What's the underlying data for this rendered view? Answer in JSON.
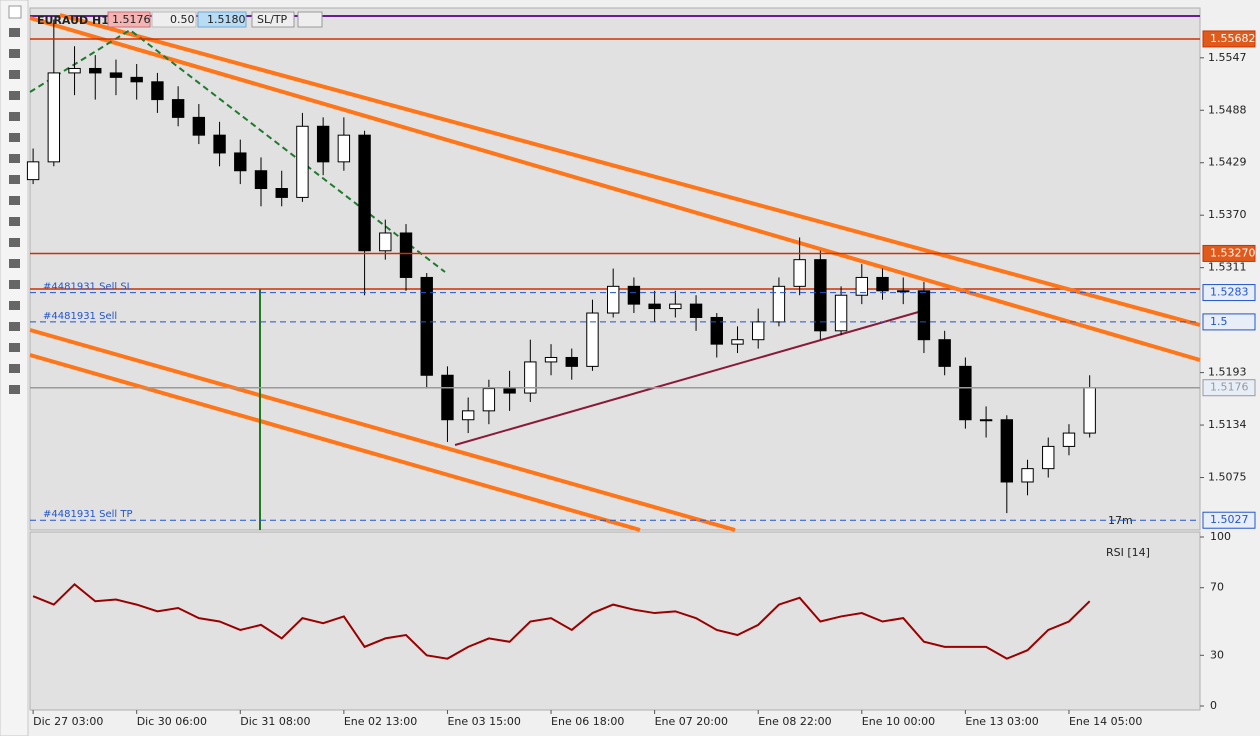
{
  "toolbar": {
    "symbol": "EURAUD H1",
    "sell": "1.5176",
    "volume": "0.50",
    "buy": "1.5180",
    "sltp": "SL/TP"
  },
  "chart_data": [
    {
      "type": "candlestick",
      "timer": "17m",
      "x": [
        0,
        4,
        8,
        12,
        16,
        20,
        24,
        28,
        32,
        36,
        40,
        44,
        48,
        52,
        56,
        60,
        64,
        68,
        72,
        76,
        80,
        84,
        88,
        92,
        96,
        100,
        104,
        108,
        112,
        116,
        120,
        124,
        128,
        132,
        136,
        140,
        144,
        148,
        152,
        156,
        160,
        164,
        168,
        172,
        176,
        180,
        184,
        188,
        192,
        196,
        200,
        204
      ],
      "ohlc": [
        [
          1.541,
          1.5445,
          1.5405,
          1.543
        ],
        [
          1.543,
          1.559,
          1.5425,
          1.553
        ],
        [
          1.553,
          1.556,
          1.5505,
          1.5535
        ],
        [
          1.5535,
          1.555,
          1.55,
          1.553
        ],
        [
          1.553,
          1.5545,
          1.5505,
          1.5525
        ],
        [
          1.5525,
          1.554,
          1.55,
          1.552
        ],
        [
          1.552,
          1.553,
          1.5485,
          1.55
        ],
        [
          1.55,
          1.5515,
          1.547,
          1.548
        ],
        [
          1.548,
          1.5495,
          1.545,
          1.546
        ],
        [
          1.546,
          1.5475,
          1.5425,
          1.544
        ],
        [
          1.544,
          1.5455,
          1.5405,
          1.542
        ],
        [
          1.542,
          1.5435,
          1.538,
          1.54
        ],
        [
          1.54,
          1.542,
          1.538,
          1.539
        ],
        [
          1.539,
          1.5485,
          1.5385,
          1.547
        ],
        [
          1.547,
          1.548,
          1.5415,
          1.543
        ],
        [
          1.543,
          1.548,
          1.542,
          1.546
        ],
        [
          1.546,
          1.5465,
          1.528,
          1.533
        ],
        [
          1.533,
          1.5365,
          1.532,
          1.535
        ],
        [
          1.535,
          1.536,
          1.5285,
          1.53
        ],
        [
          1.53,
          1.5305,
          1.5175,
          1.519
        ],
        [
          1.519,
          1.52,
          1.5115,
          1.514
        ],
        [
          1.514,
          1.5165,
          1.5125,
          1.515
        ],
        [
          1.515,
          1.5185,
          1.5135,
          1.5175
        ],
        [
          1.5175,
          1.5195,
          1.515,
          1.517
        ],
        [
          1.517,
          1.523,
          1.516,
          1.5205
        ],
        [
          1.5205,
          1.5225,
          1.519,
          1.521
        ],
        [
          1.521,
          1.522,
          1.5185,
          1.52
        ],
        [
          1.52,
          1.5275,
          1.5195,
          1.526
        ],
        [
          1.526,
          1.531,
          1.5255,
          1.529
        ],
        [
          1.529,
          1.53,
          1.526,
          1.527
        ],
        [
          1.527,
          1.5285,
          1.525,
          1.5265
        ],
        [
          1.5265,
          1.5285,
          1.5255,
          1.527
        ],
        [
          1.527,
          1.528,
          1.524,
          1.5255
        ],
        [
          1.5255,
          1.526,
          1.521,
          1.5225
        ],
        [
          1.5225,
          1.5245,
          1.5215,
          1.523
        ],
        [
          1.523,
          1.5265,
          1.522,
          1.525
        ],
        [
          1.525,
          1.53,
          1.5245,
          1.529
        ],
        [
          1.529,
          1.5345,
          1.528,
          1.532
        ],
        [
          1.532,
          1.533,
          1.523,
          1.524
        ],
        [
          1.524,
          1.529,
          1.5235,
          1.528
        ],
        [
          1.528,
          1.5315,
          1.527,
          1.53
        ],
        [
          1.53,
          1.531,
          1.5275,
          1.5285
        ],
        [
          1.5285,
          1.53,
          1.527,
          1.5285
        ],
        [
          1.5285,
          1.5295,
          1.5215,
          1.523
        ],
        [
          1.523,
          1.524,
          1.519,
          1.52
        ],
        [
          1.52,
          1.521,
          1.513,
          1.514
        ],
        [
          1.514,
          1.5155,
          1.512,
          1.514
        ],
        [
          1.514,
          1.5145,
          1.5035,
          1.507
        ],
        [
          1.507,
          1.5095,
          1.5055,
          1.5085
        ],
        [
          1.5085,
          1.512,
          1.5075,
          1.511
        ],
        [
          1.511,
          1.5135,
          1.51,
          1.5125
        ],
        [
          1.5125,
          1.519,
          1.512,
          1.5176
        ]
      ],
      "xlim": [
        -0.6,
        225.3
      ],
      "xticks": [
        {
          "value": 0,
          "label": "Dic 27 03:00"
        },
        {
          "value": 20,
          "label": "Dic 30 06:00"
        },
        {
          "value": 40,
          "label": "Dic 31 08:00"
        },
        {
          "value": 60,
          "label": "Ene 02 13:00"
        },
        {
          "value": 80,
          "label": "Ene 03 15:00"
        },
        {
          "value": 100,
          "label": "Ene 06 18:00"
        },
        {
          "value": 120,
          "label": "Ene 07 20:00"
        },
        {
          "value": 140,
          "label": "Ene 08 22:00"
        },
        {
          "value": 160,
          "label": "Ene 10 00:00"
        },
        {
          "value": 180,
          "label": "Ene 13 03:00"
        },
        {
          "value": 200,
          "label": "Ene 14 05:00"
        }
      ],
      "ylim": [
        1.5016,
        1.5603
      ],
      "yticks": [
        1.5547,
        1.5488,
        1.5429,
        {
          "value": 1.537,
          "label": "1.5370"
        },
        1.5311,
        1.5193,
        1.5134,
        1.5075
      ],
      "levels": [
        {
          "value": 1.55682,
          "label": "1.55682",
          "color": "#cc3300",
          "dashed": false
        },
        {
          "value": 1.5327,
          "label": "1.53270",
          "color": "#cc3300",
          "dashed": false
        },
        {
          "value": 1.5283,
          "label": "1.5283",
          "color": "#2255cc",
          "dashed": true,
          "name": "#4481931 Sell  SL"
        },
        {
          "value": 1.525,
          "label": "1.5",
          "color": "#2255cc",
          "dashed": true,
          "name": "#4481931 Sell"
        },
        {
          "value": 1.5176,
          "label": "1.5176",
          "color": "#9a9a9a",
          "dashed": false
        },
        {
          "value": 1.5027,
          "label": "1.5027",
          "color": "#2255cc",
          "dashed": true,
          "name": "#4481931 Sell  TP"
        }
      ]
    },
    {
      "type": "line",
      "title": "RSI [14]",
      "color": "#990000",
      "x": [
        0,
        4,
        8,
        12,
        16,
        20,
        24,
        28,
        32,
        36,
        40,
        44,
        48,
        52,
        56,
        60,
        64,
        68,
        72,
        76,
        80,
        84,
        88,
        92,
        96,
        100,
        104,
        108,
        112,
        116,
        120,
        124,
        128,
        132,
        136,
        140,
        144,
        148,
        152,
        156,
        160,
        164,
        168,
        172,
        176,
        180,
        184,
        188,
        192,
        196,
        200,
        204
      ],
      "values": [
        65,
        60,
        72,
        62,
        63,
        60,
        56,
        58,
        52,
        50,
        45,
        48,
        40,
        52,
        49,
        53,
        35,
        40,
        42,
        30,
        28,
        35,
        40,
        38,
        50,
        52,
        45,
        55,
        60,
        57,
        55,
        56,
        52,
        45,
        42,
        48,
        60,
        64,
        50,
        53,
        55,
        50,
        52,
        38,
        35,
        35,
        35,
        28,
        33,
        45,
        50,
        62
      ],
      "xlim": [
        -0.6,
        225.3
      ],
      "ylim": [
        0,
        100
      ],
      "yticks": [
        100,
        70,
        30,
        0
      ]
    }
  ]
}
